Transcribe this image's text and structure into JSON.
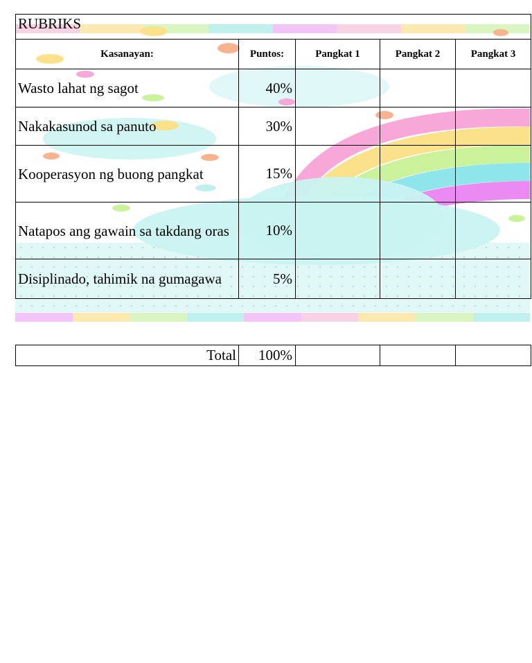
{
  "table": {
    "title": "RUBRIKS",
    "headers": {
      "criterion": "Kasanayan:",
      "points": "Puntos:",
      "group1": "Pangkat 1",
      "group2": "Pangkat 2",
      "group3": "Pangkat 3"
    },
    "rows": [
      {
        "criterion": "Wasto lahat ng sagot",
        "points": "40%"
      },
      {
        "criterion": "Nakakasunod sa panuto",
        "points": "30%"
      },
      {
        "criterion": "Kooperasyon ng buong pangkat",
        "points": "15%"
      },
      {
        "criterion": "Natapos ang gawain sa takdang oras",
        "points": "10%"
      },
      {
        "criterion": "Disiplinado, tahimik na gumagawa",
        "points": "5%"
      }
    ]
  },
  "total": {
    "label": "Total",
    "points": "100%"
  },
  "colors": {
    "pink": "#f7a8d8",
    "yellow": "#fbe28a",
    "green": "#c9f29a",
    "cyan": "#8ee6ea",
    "violet": "#ec8af4",
    "cloud": "#c9f3f1"
  }
}
